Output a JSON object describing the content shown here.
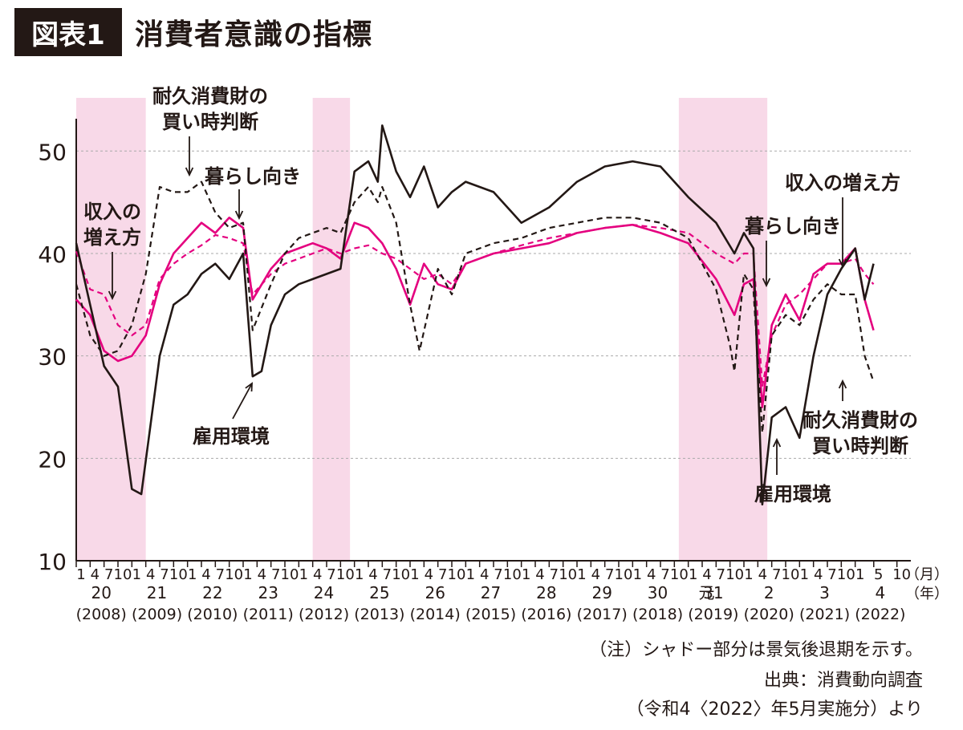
{
  "figure": {
    "badge": "図表1",
    "title": "消費者意識の指標"
  },
  "notes": [
    "（注）シャドー部分は景気後退期を示す。",
    "出典：消費動向調査",
    "（令和4〈2022〉年5月実施分）より"
  ],
  "colors": {
    "income": "#e4007f",
    "livelihood": "#e4007f",
    "employment": "#231815",
    "durables": "#231815",
    "shade": "#f8d9e8"
  },
  "chart_data": {
    "type": "line",
    "ylim": [
      10,
      53
    ],
    "yticks": [
      10,
      20,
      30,
      40,
      50
    ],
    "xlabel_month_unit": "（月）",
    "xlabel_year_unit": "（年）",
    "month_ticks": [
      "1",
      "4",
      "7",
      "10"
    ],
    "month_ticks_2022": [
      "1",
      "5",
      "10"
    ],
    "years": [
      {
        "era": "20",
        "western": "(2008)"
      },
      {
        "era": "21",
        "western": "(2009)"
      },
      {
        "era": "22",
        "western": "(2010)"
      },
      {
        "era": "23",
        "western": "(2011)"
      },
      {
        "era": "24",
        "western": "(2012)"
      },
      {
        "era": "25",
        "western": "(2013)"
      },
      {
        "era": "26",
        "western": "(2014)"
      },
      {
        "era": "27",
        "western": "(2015)"
      },
      {
        "era": "28",
        "western": "(2016)"
      },
      {
        "era": "29",
        "western": "(2017)"
      },
      {
        "era": "30",
        "western": "(2018)"
      },
      {
        "era": "31",
        "western": "(2019)"
      },
      {
        "era": "元",
        "western": ""
      },
      {
        "era": "2",
        "western": "(2020)"
      },
      {
        "era": "3",
        "western": "(2021)"
      },
      {
        "era": "4",
        "western": "(2022)"
      }
    ],
    "recessions": [
      [
        2008.0,
        2009.25
      ],
      [
        2012.25,
        2012.92
      ],
      [
        2018.83,
        2020.42
      ]
    ],
    "series": [
      {
        "key": "income",
        "style": "dashed",
        "color": "#e4007f",
        "x": [
          2008.0,
          2008.25,
          2008.5,
          2008.75,
          2009.0,
          2009.25,
          2009.5,
          2009.75,
          2010.0,
          2010.25,
          2010.5,
          2010.75,
          2011.0,
          2011.17,
          2011.5,
          2011.75,
          2012.0,
          2012.25,
          2012.5,
          2012.75,
          2013.0,
          2013.25,
          2013.5,
          2013.75,
          2014.0,
          2014.25,
          2014.5,
          2014.75,
          2015.0,
          2015.5,
          2016.0,
          2016.5,
          2017.0,
          2017.5,
          2018.0,
          2018.5,
          2019.0,
          2019.5,
          2019.83,
          2020.0,
          2020.17,
          2020.33,
          2020.5,
          2020.75,
          2021.0,
          2021.25,
          2021.5,
          2021.75,
          2022.0,
          2022.17,
          2022.33
        ],
        "y": [
          40.2,
          36.5,
          36.0,
          33.0,
          32.0,
          33.0,
          37.5,
          39.0,
          40.0,
          40.8,
          41.8,
          41.5,
          41.0,
          36.0,
          38.0,
          39.0,
          39.5,
          40.0,
          40.5,
          40.0,
          40.5,
          40.8,
          40.0,
          39.5,
          38.5,
          37.5,
          38.0,
          37.0,
          39.0,
          40.0,
          40.8,
          41.5,
          42.0,
          42.5,
          42.8,
          42.5,
          42.0,
          40.0,
          39.0,
          40.0,
          40.0,
          27.0,
          32.0,
          35.0,
          36.0,
          37.5,
          39.0,
          39.0,
          39.5,
          38.0,
          37.0
        ]
      },
      {
        "key": "livelihood",
        "style": "solid",
        "color": "#e4007f",
        "x": [
          2008.0,
          2008.25,
          2008.5,
          2008.75,
          2009.0,
          2009.25,
          2009.5,
          2009.75,
          2010.0,
          2010.25,
          2010.5,
          2010.75,
          2011.0,
          2011.17,
          2011.5,
          2011.75,
          2012.0,
          2012.25,
          2012.5,
          2012.75,
          2013.0,
          2013.25,
          2013.5,
          2013.75,
          2014.0,
          2014.25,
          2014.5,
          2014.75,
          2015.0,
          2015.5,
          2016.0,
          2016.5,
          2017.0,
          2017.5,
          2018.0,
          2018.5,
          2019.0,
          2019.5,
          2019.83,
          2020.0,
          2020.17,
          2020.33,
          2020.5,
          2020.75,
          2021.0,
          2021.25,
          2021.5,
          2021.75,
          2022.0,
          2022.17,
          2022.33
        ],
        "y": [
          35.5,
          34.0,
          30.5,
          29.5,
          30.0,
          32.0,
          37.0,
          40.0,
          41.5,
          43.0,
          42.0,
          43.5,
          42.5,
          35.5,
          38.5,
          40.0,
          40.5,
          41.0,
          40.5,
          39.5,
          43.0,
          42.5,
          41.0,
          38.5,
          35.0,
          39.0,
          37.0,
          36.5,
          39.0,
          40.0,
          40.5,
          41.0,
          42.0,
          42.5,
          42.8,
          42.0,
          41.0,
          37.5,
          34.0,
          37.0,
          37.5,
          25.0,
          33.0,
          36.0,
          33.5,
          38.0,
          39.0,
          39.0,
          40.5,
          35.5,
          32.5
        ]
      },
      {
        "key": "employment",
        "style": "solid",
        "color": "#231815",
        "x": [
          2008.0,
          2008.25,
          2008.5,
          2008.75,
          2009.0,
          2009.17,
          2009.5,
          2009.75,
          2010.0,
          2010.25,
          2010.5,
          2010.75,
          2011.0,
          2011.17,
          2011.33,
          2011.5,
          2011.75,
          2012.0,
          2012.25,
          2012.5,
          2012.75,
          2013.0,
          2013.25,
          2013.42,
          2013.5,
          2013.75,
          2014.0,
          2014.25,
          2014.5,
          2014.75,
          2015.0,
          2015.5,
          2016.0,
          2016.5,
          2017.0,
          2017.5,
          2018.0,
          2018.5,
          2019.0,
          2019.5,
          2019.83,
          2020.0,
          2020.17,
          2020.33,
          2020.5,
          2020.75,
          2021.0,
          2021.25,
          2021.5,
          2021.75,
          2022.0,
          2022.17,
          2022.33
        ],
        "y": [
          41.0,
          35.0,
          29.0,
          27.0,
          17.0,
          16.5,
          30.0,
          35.0,
          36.0,
          38.0,
          39.0,
          37.5,
          40.0,
          28.0,
          28.5,
          33.0,
          36.0,
          37.0,
          37.5,
          38.0,
          38.5,
          48.0,
          49.0,
          47.0,
          52.5,
          48.0,
          45.5,
          48.5,
          44.5,
          46.0,
          47.0,
          46.0,
          43.0,
          44.5,
          47.0,
          48.5,
          49.0,
          48.5,
          45.5,
          43.0,
          40.0,
          42.0,
          40.5,
          15.5,
          24.0,
          25.0,
          22.0,
          30.0,
          36.0,
          38.5,
          40.5,
          35.5,
          39.0
        ]
      },
      {
        "key": "durables",
        "style": "dashed",
        "color": "#231815",
        "x": [
          2008.0,
          2008.25,
          2008.5,
          2008.75,
          2009.0,
          2009.25,
          2009.5,
          2009.75,
          2010.0,
          2010.25,
          2010.5,
          2010.75,
          2011.0,
          2011.17,
          2011.5,
          2011.75,
          2012.0,
          2012.25,
          2012.5,
          2012.75,
          2013.0,
          2013.25,
          2013.42,
          2013.5,
          2013.75,
          2014.0,
          2014.17,
          2014.5,
          2014.75,
          2015.0,
          2015.5,
          2016.0,
          2016.5,
          2017.0,
          2017.5,
          2018.0,
          2018.5,
          2019.0,
          2019.5,
          2019.75,
          2019.83,
          2020.0,
          2020.17,
          2020.33,
          2020.5,
          2020.75,
          2021.0,
          2021.25,
          2021.5,
          2021.75,
          2022.0,
          2022.17,
          2022.33
        ],
        "y": [
          37.0,
          32.0,
          30.0,
          30.5,
          33.0,
          38.0,
          46.5,
          46.0,
          46.0,
          47.0,
          44.0,
          42.5,
          43.0,
          32.5,
          37.0,
          40.0,
          41.5,
          42.0,
          42.5,
          42.0,
          45.0,
          46.5,
          45.0,
          46.5,
          43.0,
          35.0,
          30.5,
          38.5,
          36.0,
          40.0,
          41.0,
          41.5,
          42.5,
          43.0,
          43.5,
          43.5,
          43.0,
          41.5,
          36.5,
          31.0,
          28.5,
          38.0,
          36.5,
          22.5,
          32.0,
          34.0,
          33.0,
          35.5,
          37.0,
          36.0,
          36.0,
          30.0,
          27.5
        ]
      }
    ],
    "annotations": {
      "durables_left": [
        "耐久消費財の",
        "買い時判断"
      ],
      "livelihood_left": "暮らし向き",
      "income_left": [
        "収入の",
        "増え方"
      ],
      "employment_left": "雇用環境",
      "income_right": "収入の増え方",
      "livelihood_right": "暮らし向き",
      "durables_right": [
        "耐久消費財の",
        "買い時判断"
      ],
      "employment_right": "雇用環境"
    }
  }
}
